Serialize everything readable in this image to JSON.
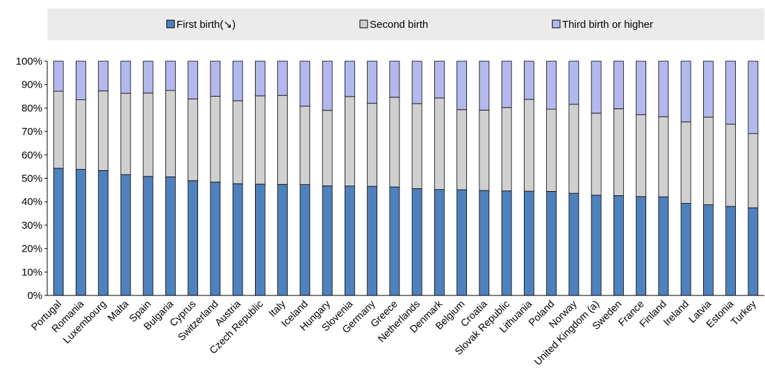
{
  "chart_data": {
    "type": "bar",
    "stacked": true,
    "categories": [
      "Portugal",
      "Romania",
      "Luxembourg",
      "Malta",
      "Spain",
      "Bulgaria",
      "Cyprus",
      "Switzerland",
      "Austria",
      "Czech Republic",
      "Italy",
      "Iceland",
      "Hungary",
      "Slovenia",
      "Germany",
      "Greece",
      "Netherlands",
      "Denmark",
      "Belgium",
      "Croatia",
      "Slovak Republic",
      "Lithuania",
      "Poland",
      "Norway",
      "United Kingdom (a)",
      "Sweden",
      "France",
      "Finland",
      "Ireland",
      "Latvia",
      "Estonia",
      "Turkey"
    ],
    "series": [
      {
        "name": "First birth(↘)",
        "color": "#4f81bd",
        "values": [
          54.3,
          53.8,
          53.3,
          51.6,
          50.8,
          50.6,
          49.0,
          48.4,
          47.7,
          47.5,
          47.4,
          47.3,
          46.8,
          46.7,
          46.6,
          46.3,
          45.6,
          45.2,
          45.1,
          44.8,
          44.6,
          44.5,
          44.4,
          43.6,
          42.8,
          42.6,
          42.2,
          42.1,
          39.3,
          38.7,
          38.0,
          37.4
        ]
      },
      {
        "name": "Second birth",
        "color": "#d0d0d0",
        "values": [
          32.9,
          29.7,
          34.0,
          34.7,
          35.6,
          36.9,
          34.9,
          36.6,
          35.4,
          37.7,
          38.0,
          33.5,
          32.2,
          38.2,
          35.4,
          38.3,
          36.3,
          39.1,
          34.2,
          34.3,
          35.6,
          39.2,
          35.1,
          38.0,
          35.0,
          37.1,
          35.0,
          34.2,
          34.8,
          37.4,
          35.1,
          31.7
        ]
      },
      {
        "name": "Third birth or higher",
        "color": "#b3b9ec",
        "values": [
          12.8,
          16.5,
          12.7,
          13.7,
          13.6,
          12.5,
          16.1,
          15.0,
          16.9,
          14.8,
          14.6,
          19.2,
          21.0,
          15.1,
          18.0,
          15.4,
          18.1,
          15.7,
          20.7,
          20.9,
          19.8,
          16.3,
          20.5,
          18.4,
          22.2,
          20.3,
          22.8,
          23.7,
          25.9,
          23.9,
          26.9,
          30.9
        ]
      }
    ],
    "yticks": [
      "0%",
      "10%",
      "20%",
      "30%",
      "40%",
      "50%",
      "60%",
      "70%",
      "80%",
      "90%",
      "100%"
    ],
    "ylim": [
      0,
      100
    ],
    "grid": false,
    "legend_position": "top"
  }
}
